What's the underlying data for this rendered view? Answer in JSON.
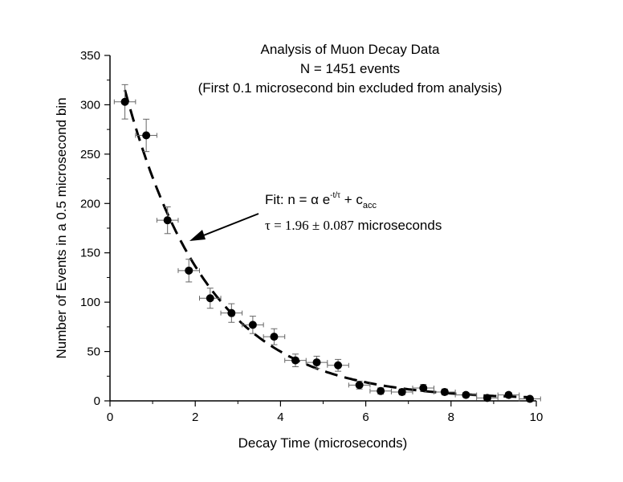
{
  "chart_data": {
    "type": "scatter",
    "title": [
      "Analysis of Muon Decay Data",
      "N = 1451 events",
      "(First 0.1 microsecond bin excluded from analysis)"
    ],
    "xlabel": "Decay Time (microseconds)",
    "ylabel": "Number of Events in a 0.5 microsecond bin",
    "xlim": [
      0,
      10
    ],
    "ylim": [
      0,
      350
    ],
    "xticks": [
      "0",
      "2",
      "4",
      "6",
      "8",
      "10"
    ],
    "yticks": [
      "0",
      "50",
      "100",
      "150",
      "200",
      "250",
      "300",
      "350"
    ],
    "grid": false,
    "series": [
      {
        "x": [
          0.35,
          0.85,
          1.35,
          1.85,
          2.35,
          2.85,
          3.35,
          3.85,
          4.35,
          4.85,
          5.35,
          5.85,
          6.35,
          6.85,
          7.35,
          7.85,
          8.35,
          8.85,
          9.35,
          9.85
        ],
        "y": [
          303,
          269,
          183,
          132,
          104,
          89,
          77,
          65,
          41,
          39,
          36,
          16,
          10,
          9,
          13,
          9,
          6,
          3,
          6,
          2
        ],
        "xerr": 0.25
      }
    ],
    "fit": {
      "style": "dashed",
      "tau": 1.96,
      "tau_error": 0.087,
      "label_fit_prefix": "Fit:  n = α e",
      "label_fit_exp": "-t/τ",
      "label_fit_plus": " + c",
      "label_fit_sub": "acc",
      "label_tau": "τ = 1.96 ± 0.087",
      "label_tau_unit": " microseconds"
    }
  }
}
